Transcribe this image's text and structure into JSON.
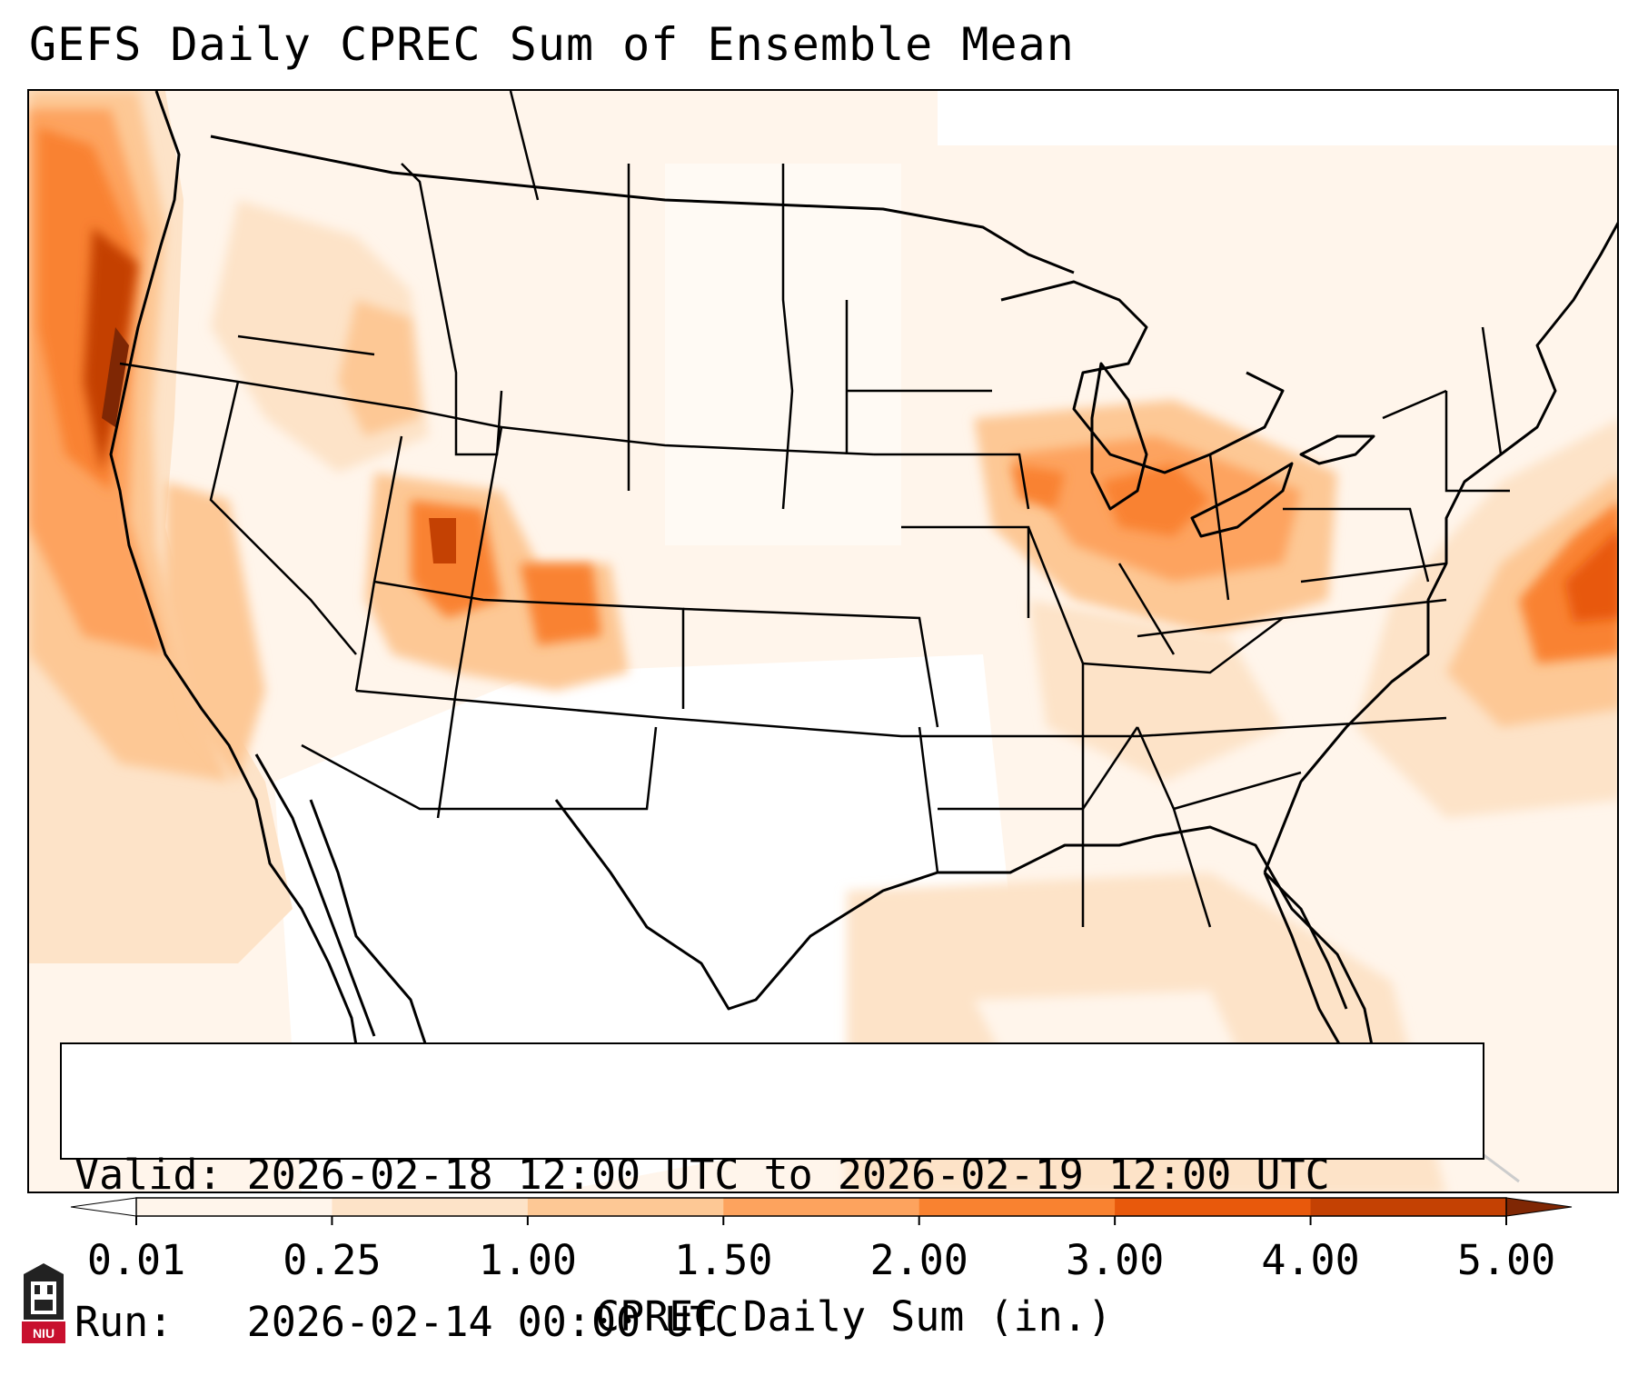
{
  "title": "GEFS Daily CPREC Sum of Ensemble Mean",
  "info": {
    "valid_line": "Valid: 2026-02-18 12:00 UTC to 2026-02-19 12:00 UTC",
    "run_line": "Run:   2026-02-14 00:00 UTC"
  },
  "colorbar": {
    "label": "CPREC Daily Sum (in.)",
    "ticks": [
      "0.01",
      "0.25",
      "1.00",
      "1.50",
      "2.00",
      "3.00",
      "4.00",
      "5.00"
    ],
    "colors": [
      "#fff5eb",
      "#fde3c8",
      "#fdc895",
      "#fda35e",
      "#f98230",
      "#e8590c",
      "#c44103"
    ],
    "under_color": "#ffffff",
    "over_color": "#7f2704"
  },
  "logo": {
    "text": "NIU"
  },
  "precip_regions": [
    {
      "name": "pacific-northwest-coast",
      "level": 4
    },
    {
      "name": "california-coast",
      "level": 3
    },
    {
      "name": "utah-colorado-rockies",
      "level": 3
    },
    {
      "name": "great-lakes",
      "level": 3
    },
    {
      "name": "western-atlantic",
      "level": 4
    },
    {
      "name": "gulf-of-mexico",
      "level": 1
    }
  ]
}
